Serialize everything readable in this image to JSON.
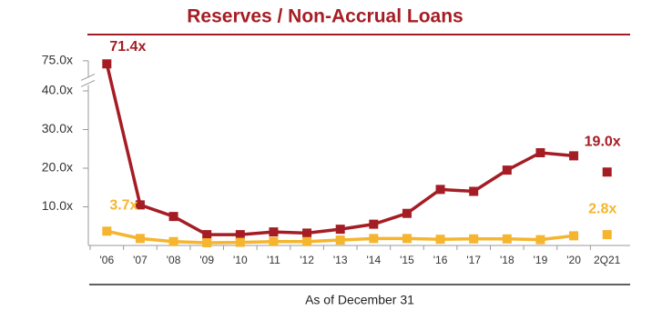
{
  "chart_data": {
    "type": "line",
    "title": "Reserves / Non-Accrual Loans",
    "x_label": "As of December 31",
    "categories": [
      "'06",
      "'07",
      "'08",
      "'09",
      "'10",
      "'11",
      "'12",
      "'13",
      "'14",
      "'15",
      "'16",
      "'17",
      "'18",
      "'19",
      "'20",
      "2Q21"
    ],
    "series": [
      {
        "color": "#a51d24",
        "values": [
          71.4,
          10.5,
          7.5,
          2.8,
          2.8,
          3.5,
          3.2,
          4.2,
          5.5,
          8.3,
          14.5,
          14.0,
          19.5,
          24.0,
          23.2,
          19.0
        ],
        "value_labels": [
          "71.4x",
          null,
          null,
          null,
          null,
          null,
          null,
          null,
          null,
          null,
          null,
          null,
          null,
          null,
          null,
          "19.0x"
        ]
      },
      {
        "color": "#f5b52e",
        "values": [
          3.7,
          1.8,
          1.0,
          0.7,
          0.8,
          1.0,
          1.0,
          1.4,
          1.8,
          1.8,
          1.6,
          1.7,
          1.7,
          1.5,
          2.5,
          2.8
        ],
        "value_labels": [
          "3.7x",
          null,
          null,
          null,
          null,
          null,
          null,
          null,
          null,
          null,
          null,
          null,
          null,
          null,
          null,
          "2.8x"
        ]
      }
    ],
    "ylim": [
      0,
      75
    ],
    "yticks": [
      {
        "value": 10,
        "label": "10.0x"
      },
      {
        "value": 20,
        "label": "20.0x"
      },
      {
        "value": 30,
        "label": "30.0x"
      },
      {
        "value": 40,
        "label": "40.0x"
      },
      {
        "value": 75,
        "label": "75.0x"
      }
    ],
    "axis_break": true,
    "last_point_unconnected": true
  }
}
